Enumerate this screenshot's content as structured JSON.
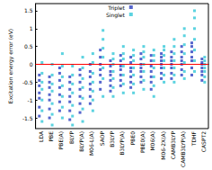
{
  "chart_data": {
    "type": "scatter",
    "y_label": "Excitation energy error (eV)",
    "categories": [
      "LDA",
      "PBE",
      "PBE(A)",
      "BLYP",
      "BLYP(A)",
      "M06-L(A)",
      "SAOP",
      "B3LYP",
      "B3LYP(A)",
      "PBE0",
      "PBE0(A)",
      "M06(A)",
      "M06-2X(A)",
      "CAMB3LYP",
      "CAMB3LYP(A)",
      "TDHF",
      "CASPT2"
    ],
    "ylim": [
      -1.8,
      1.7
    ],
    "yticks": [
      -1.5,
      -1,
      -0.5,
      0,
      0.5,
      1,
      1.5
    ],
    "grid": false,
    "legend": "top",
    "marker": "square",
    "reference_line": {
      "value": 0,
      "color": "#ff0000"
    },
    "series": [
      {
        "name": "Triplet",
        "color": "#2a3fbf",
        "values": [
          [
            -1.45,
            -1.2,
            -0.95,
            -0.8,
            -0.6,
            -0.45,
            -0.3
          ],
          [
            -1.5,
            -1.25,
            -1.0,
            -0.85,
            -0.65,
            -0.5,
            -0.35
          ],
          [
            -1.3,
            -1.05,
            -0.85,
            -0.65,
            -0.45,
            -0.25,
            -0.1
          ],
          [
            -1.55,
            -1.3,
            -1.05,
            -0.9,
            -0.7,
            -0.5,
            -0.35
          ],
          [
            -1.35,
            -1.1,
            -0.9,
            -0.7,
            -0.5,
            -0.3,
            -0.15
          ],
          [
            -1.1,
            -0.9,
            -0.7,
            -0.55,
            -0.35,
            -0.2,
            0.0
          ],
          [
            -0.7,
            -0.5,
            -0.3,
            -0.15,
            0.0,
            0.2,
            0.4
          ],
          [
            -0.75,
            -0.6,
            -0.45,
            -0.3,
            -0.2,
            -0.05,
            0.1
          ],
          [
            -0.6,
            -0.45,
            -0.3,
            -0.15,
            -0.05,
            0.1,
            0.25
          ],
          [
            -0.65,
            -0.5,
            -0.35,
            -0.2,
            -0.1,
            0.05,
            0.2
          ],
          [
            -0.5,
            -0.35,
            -0.2,
            -0.1,
            0.0,
            0.15,
            0.3
          ],
          [
            -0.7,
            -0.5,
            -0.35,
            -0.2,
            -0.05,
            0.1,
            0.25
          ],
          [
            -0.4,
            -0.25,
            -0.1,
            0.0,
            0.1,
            0.2,
            0.3
          ],
          [
            -0.4,
            -0.25,
            -0.1,
            0.0,
            0.1,
            0.2,
            0.35
          ],
          [
            -0.3,
            -0.15,
            0.0,
            0.1,
            0.2,
            0.35,
            0.5
          ],
          [
            -0.3,
            -0.1,
            0.1,
            0.2,
            0.35,
            0.5,
            0.6
          ],
          [
            -0.45,
            -0.3,
            -0.2,
            -0.1,
            0.0,
            0.05,
            0.15
          ]
        ]
      },
      {
        "name": "Singlet",
        "color": "#33c8d8",
        "values": [
          [
            -1.6,
            -1.3,
            -1.0,
            -0.7,
            -0.5,
            -0.25,
            0.05
          ],
          [
            -1.7,
            -1.4,
            -1.1,
            -0.75,
            -0.55,
            -0.3,
            0.0
          ],
          [
            -1.5,
            -1.2,
            -0.9,
            -0.6,
            -0.35,
            -0.05,
            0.3
          ],
          [
            -1.7,
            -1.45,
            -1.15,
            -0.8,
            -0.55,
            -0.3,
            -0.05
          ],
          [
            -1.6,
            -1.25,
            -0.95,
            -0.65,
            -0.4,
            -0.1,
            0.2
          ],
          [
            -1.3,
            -1.0,
            -0.75,
            -0.5,
            -0.25,
            0.05,
            0.3
          ],
          [
            -0.9,
            -0.4,
            -0.1,
            0.2,
            0.45,
            0.7,
            0.95
          ],
          [
            -0.9,
            -0.65,
            -0.4,
            -0.2,
            0.0,
            0.15,
            0.3
          ],
          [
            -0.8,
            -0.55,
            -0.3,
            -0.05,
            0.15,
            0.3,
            0.5
          ],
          [
            -0.8,
            -0.55,
            -0.3,
            -0.1,
            0.1,
            0.25,
            0.4
          ],
          [
            -0.7,
            -0.45,
            -0.2,
            0.0,
            0.2,
            0.35,
            0.5
          ],
          [
            -0.9,
            -0.6,
            -0.35,
            -0.1,
            0.1,
            0.25,
            0.4
          ],
          [
            -0.5,
            -0.3,
            -0.1,
            0.1,
            0.25,
            0.4,
            0.5
          ],
          [
            -0.5,
            -0.3,
            -0.1,
            0.1,
            0.3,
            0.5,
            0.7
          ],
          [
            -0.4,
            -0.2,
            0.05,
            0.3,
            0.55,
            0.8,
            1.0
          ],
          [
            -0.2,
            0.1,
            0.4,
            0.7,
            1.0,
            1.3,
            1.5
          ],
          [
            -0.5,
            -0.35,
            -0.2,
            -0.1,
            0.0,
            0.1,
            0.2
          ]
        ]
      }
    ]
  }
}
